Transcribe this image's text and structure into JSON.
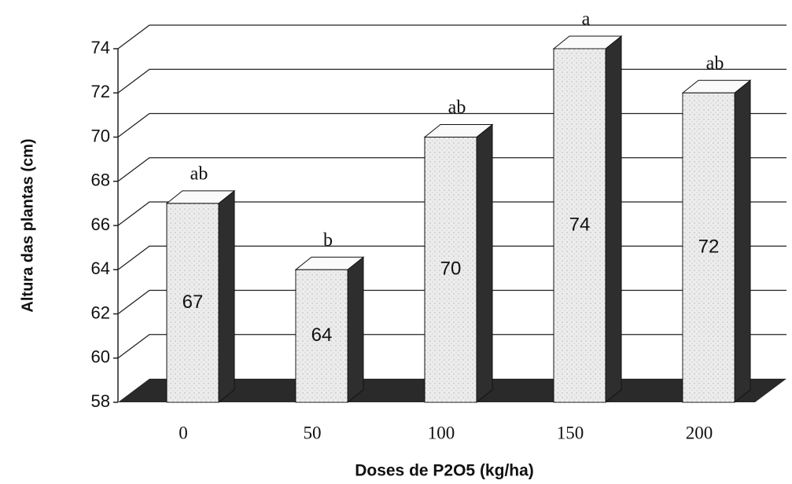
{
  "chart_data": {
    "type": "bar",
    "categories": [
      "0",
      "50",
      "100",
      "150",
      "200"
    ],
    "values": [
      67,
      64,
      70,
      74,
      72
    ],
    "annotations": [
      "ab",
      "b",
      "ab",
      "a",
      "ab"
    ],
    "y_label": "Altura das plantas (cm)",
    "x_label": "Doses de P2O5 (kg/ha)",
    "ylim": [
      58,
      74
    ],
    "yticks": [
      58,
      60,
      62,
      64,
      66,
      68,
      70,
      72,
      74
    ],
    "grid": true,
    "color": "#ececec",
    "side_color": "#2e2e2e",
    "floor_color": "#2a2a2a"
  }
}
